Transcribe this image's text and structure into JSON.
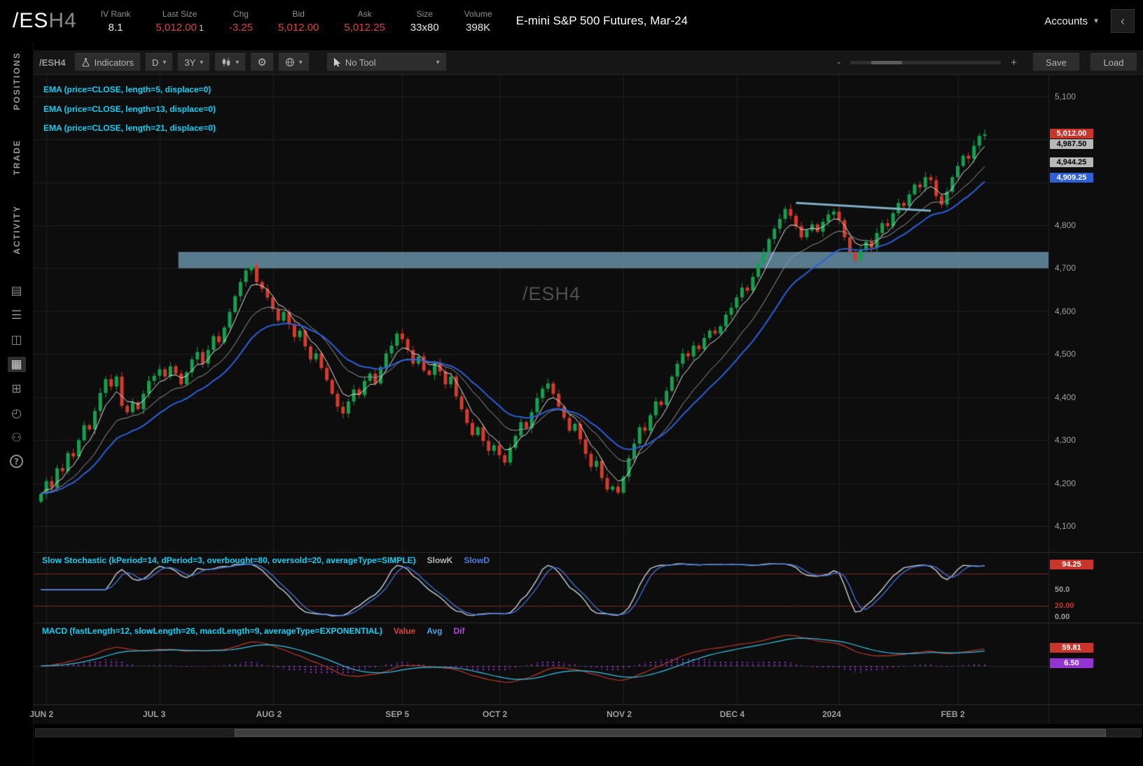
{
  "header": {
    "symbol": "/ES",
    "symbol_suffix": "H4",
    "fields": [
      {
        "label": "IV Rank",
        "value": "8.1",
        "color": ""
      },
      {
        "label": "Last Size",
        "value": "5,012.00",
        "extra": "1",
        "color": "red"
      },
      {
        "label": "Chg",
        "value": "-3.25",
        "color": "red"
      },
      {
        "label": "Bid",
        "value": "5,012.00",
        "color": "red"
      },
      {
        "label": "Ask",
        "value": "5,012.25",
        "color": "red"
      },
      {
        "label": "Size",
        "value": "33x80",
        "color": ""
      },
      {
        "label": "Volume",
        "value": "398K",
        "color": ""
      }
    ],
    "description": "E-mini S&P 500 Futures, Mar-24",
    "accounts_label": "Accounts"
  },
  "icons": {
    "caret": "▾",
    "chevron_down": "▼",
    "chevron_left": "‹"
  },
  "sidebar": {
    "tabs": [
      "POSITIONS",
      "TRADE",
      "ACTIVITY"
    ],
    "icons": [
      {
        "name": "calculator-icon",
        "glyph": "▤"
      },
      {
        "name": "watchlist-icon",
        "glyph": "☰"
      },
      {
        "name": "monitor-icon",
        "glyph": "◫"
      },
      {
        "name": "chart-icon",
        "glyph": "▦",
        "active": true
      },
      {
        "name": "grid-layout-icon",
        "glyph": "⊞"
      },
      {
        "name": "clock-icon",
        "glyph": "◴"
      },
      {
        "name": "people-icon",
        "glyph": "⚇"
      },
      {
        "name": "help-icon",
        "glyph": "?",
        "round": true
      }
    ]
  },
  "toolbar": {
    "symbol": "/ESH4",
    "indicators_label": "Indicators",
    "timeframe": "D",
    "range": "3Y",
    "no_tool_label": "No Tool",
    "zoom_minus": "-",
    "zoom_plus": "+",
    "save_label": "Save",
    "load_label": "Load"
  },
  "chart": {
    "legend": [
      "EMA (price=CLOSE, length=5, displace=0)",
      "EMA (price=CLOSE, length=13, displace=0)",
      "EMA (price=CLOSE, length=21, displace=0)"
    ],
    "watermark": "/ESH4",
    "y_ticks": [
      {
        "label": "5,100",
        "price": 5100
      },
      {
        "label": "4,800",
        "price": 4800
      },
      {
        "label": "4,700",
        "price": 4700
      },
      {
        "label": "4,600",
        "price": 4600
      },
      {
        "label": "4,500",
        "price": 4500
      },
      {
        "label": "4,400",
        "price": 4400
      },
      {
        "label": "4,300",
        "price": 4300
      },
      {
        "label": "4,200",
        "price": 4200
      },
      {
        "label": "4,100",
        "price": 4100
      }
    ],
    "price_badges": [
      {
        "text": "5,012.00",
        "price": 5012.0,
        "bg": "#c9352b",
        "fg": "#ffffff"
      },
      {
        "text": "4,987.50",
        "price": 4987.5,
        "bg": "#b8b8b8",
        "fg": "#000000"
      },
      {
        "text": "4,944.25",
        "price": 4944.25,
        "bg": "#b8b8b8",
        "fg": "#000000"
      },
      {
        "text": "4,909.25",
        "price": 4909.25,
        "bg": "#2d5fd8",
        "fg": "#ffffff"
      }
    ],
    "x_labels": [
      {
        "label": "JUN 2",
        "i": 1
      },
      {
        "label": "JUL 3",
        "i": 22
      },
      {
        "label": "AUG 2",
        "i": 43
      },
      {
        "label": "SEP 5",
        "i": 67
      },
      {
        "label": "OCT 2",
        "i": 85
      },
      {
        "label": "NOV 2",
        "i": 108
      },
      {
        "label": "DEC 4",
        "i": 129
      },
      {
        "label": "2024",
        "i": 148
      },
      {
        "label": "FEB 2",
        "i": 170
      }
    ]
  },
  "stochastic": {
    "title": "Slow Stochastic (kPeriod=14, dPeriod=3, overbought=80, oversold=20, averageType=SIMPLE)",
    "slowk_label": "SlowK",
    "slowd_label": "SlowD",
    "badge": {
      "text": "94.25",
      "value": 94.25,
      "bg": "#c9352b",
      "fg": "#ffffff"
    },
    "labels": [
      {
        "text": "50.0",
        "value": 50,
        "color": "#9e9e9e"
      },
      {
        "text": "20.00",
        "value": 20,
        "color": "#c0392b"
      },
      {
        "text": "0.00",
        "value": 0,
        "color": "#9e9e9e"
      }
    ]
  },
  "macd": {
    "title": "MACD (fastLength=12, slowLength=26, macdLength=9, averageType=EXPONENTIAL)",
    "value_label": "Value",
    "avg_label": "Avg",
    "dif_label": "Dif",
    "badges": [
      {
        "text": "59.81",
        "value": 59.81,
        "bg": "#c9352b",
        "fg": "#ffffff"
      },
      {
        "text": "6.50",
        "value": 6.5,
        "bg": "#9333d6",
        "fg": "#ffffff"
      }
    ]
  },
  "chart_data": {
    "type": "candlestick",
    "symbol": "/ESH4",
    "timeframe": "D",
    "range": "3Y",
    "title": "E-mini S&P 500 Futures, Mar-24",
    "ylim": [
      4040,
      5150
    ],
    "last": {
      "price": 5012.0,
      "change": -3.25,
      "bid": 5012.0,
      "ask": 5012.25,
      "volume": "398K"
    },
    "closes": [
      4175,
      4205,
      4190,
      4235,
      4228,
      4270,
      4262,
      4300,
      4335,
      4325,
      4368,
      4410,
      4442,
      4425,
      4448,
      4380,
      4365,
      4388,
      4372,
      4408,
      4438,
      4450,
      4465,
      4448,
      4472,
      4455,
      4430,
      4458,
      4488,
      4505,
      4478,
      4510,
      4542,
      4528,
      4562,
      4598,
      4635,
      4668,
      4695,
      4705,
      4668,
      4652,
      4632,
      4605,
      4578,
      4598,
      4570,
      4540,
      4555,
      4518,
      4488,
      4502,
      4468,
      4440,
      4408,
      4378,
      4362,
      4390,
      4418,
      4405,
      4438,
      4455,
      4432,
      4470,
      4502,
      4520,
      4548,
      4535,
      4510,
      4478,
      4495,
      4462,
      4452,
      4478,
      4460,
      4430,
      4448,
      4402,
      4372,
      4340,
      4312,
      4330,
      4298,
      4275,
      4288,
      4265,
      4248,
      4282,
      4310,
      4342,
      4328,
      4365,
      4398,
      4420,
      4432,
      4408,
      4378,
      4352,
      4322,
      4338,
      4302,
      4268,
      4238,
      4252,
      4212,
      4185,
      4192,
      4178,
      4215,
      4258,
      4292,
      4330,
      4322,
      4358,
      4390,
      4382,
      4415,
      4448,
      4478,
      4502,
      4495,
      4520,
      4512,
      4538,
      4555,
      4548,
      4565,
      4592,
      4608,
      4632,
      4655,
      4648,
      4680,
      4712,
      4738,
      4768,
      4792,
      4815,
      4838,
      4822,
      4798,
      4772,
      4788,
      4802,
      4785,
      4808,
      4825,
      4832,
      4812,
      4772,
      4738,
      4718,
      4742,
      4762,
      4748,
      4782,
      4805,
      4798,
      4828,
      4852,
      4845,
      4872,
      4895,
      4888,
      4912,
      4905,
      4868,
      4848,
      4878,
      4912,
      4938,
      4962,
      4955,
      4985,
      5008,
      5012
    ],
    "zone": {
      "start_index": 26,
      "price_from": 4700,
      "price_to": 4738
    },
    "trendline": {
      "i1": 140,
      "p1": 4852,
      "i2": 165,
      "p2": 4834
    },
    "studies": {
      "ema_lengths": [
        5,
        13,
        21
      ],
      "stochastic": {
        "kPeriod": 14,
        "dPeriod": 3,
        "overbought": 80,
        "oversold": 20,
        "averageType": "SIMPLE"
      },
      "macd": {
        "fastLength": 12,
        "slowLength": 26,
        "macdLength": 9,
        "averageType": "EXPONENTIAL"
      }
    },
    "colors": {
      "bg": "#0d0d0d",
      "grid": "#202020",
      "up": "#14a14f",
      "down": "#d23b2e",
      "ema5": "#e4e4e4",
      "ema13": "#9a9a9a",
      "ema21": "#2d5fd8",
      "zone": "rgba(103,143,166,0.85)",
      "trend": "#7fb0c6",
      "slowk": "#c9d2da",
      "slowd": "#3f6fd0",
      "obos": "#7a2525",
      "value": "#c0392b",
      "avg": "#38c6e8",
      "dif": "#9333d6"
    }
  }
}
